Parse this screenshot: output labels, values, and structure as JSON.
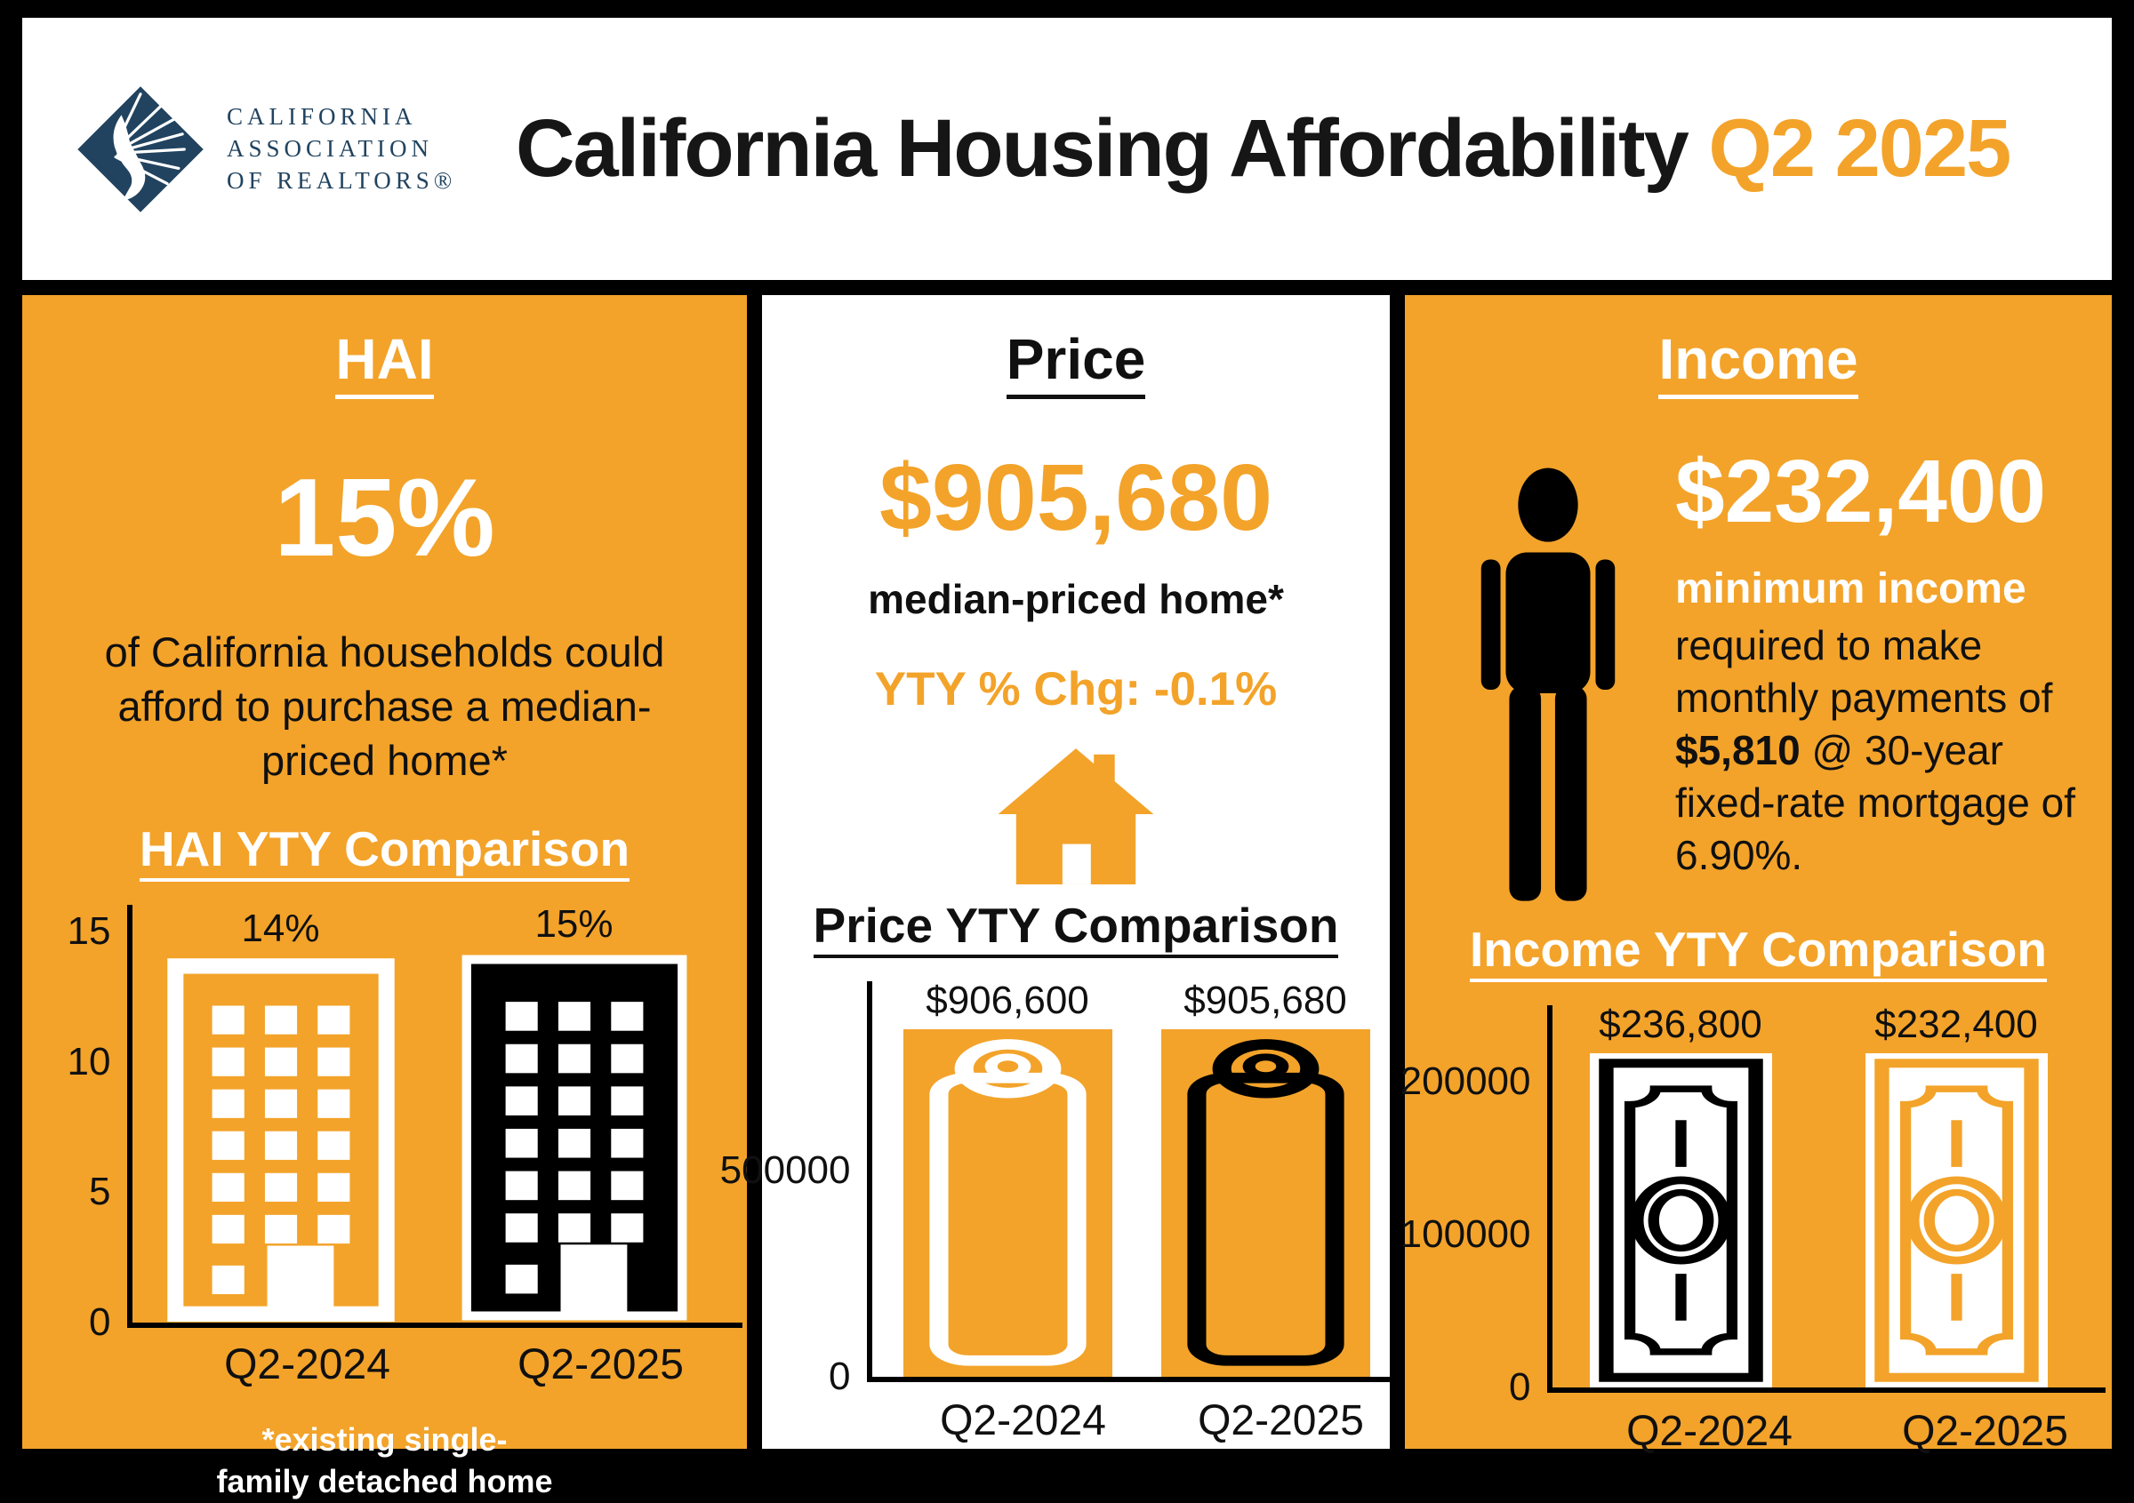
{
  "colors": {
    "accent": "#f3a32a",
    "navy": "#21435f",
    "black": "#000000",
    "white": "#ffffff"
  },
  "header": {
    "logo_line1": "CALIFORNIA",
    "logo_line2": "ASSOCIATION",
    "logo_line3": "OF REALTORS®",
    "title": "California Housing Affordability",
    "title_accent": "Q2 2025"
  },
  "panels": {
    "hai": {
      "title": "HAI",
      "headline": "15%",
      "description": "of California households could afford to purchase a median-priced home*",
      "chart_title": "HAI YTY Comparison",
      "footnote_line1": "*existing single-",
      "footnote_line2": "family detached home"
    },
    "price": {
      "title": "Price",
      "headline": "$905,680",
      "subhead": "median-priced home*",
      "yty_change": "YTY % Chg: -0.1%",
      "chart_title": "Price YTY Comparison"
    },
    "income": {
      "title": "Income",
      "headline": "$232,400",
      "min_label": "minimum income",
      "desc_part1": "required to make monthly payments of ",
      "desc_bold": "$5,810",
      "desc_part2": " @ 30-year fixed-rate mortgage of 6.90%.",
      "chart_title": "Income YTY Comparison"
    }
  },
  "chart_data": [
    {
      "id": "hai",
      "type": "bar",
      "title": "HAI YTY Comparison",
      "categories": [
        "Q2-2024",
        "Q2-2025"
      ],
      "values": [
        14,
        15
      ],
      "value_labels": [
        "14%",
        "15%"
      ],
      "yticks": [
        0,
        5,
        10,
        15
      ],
      "ytick_labels": [
        "0",
        "5",
        "10",
        "15"
      ],
      "ylim": [
        0,
        16
      ],
      "ylabel": "",
      "xlabel": "",
      "grid": false,
      "legend": "none",
      "icon": "building",
      "bar_styles": [
        "orange-with-white-outline",
        "black-with-white-windows"
      ]
    },
    {
      "id": "price",
      "type": "bar",
      "title": "Price YTY Comparison",
      "categories": [
        "Q2-2024",
        "Q2-2025"
      ],
      "values": [
        906600,
        905680
      ],
      "value_labels": [
        "$906,600",
        "$905,680"
      ],
      "yticks": [
        0,
        500000
      ],
      "ytick_labels": [
        "0",
        "500000"
      ],
      "ylim": [
        0,
        960000
      ],
      "ylabel": "",
      "xlabel": "",
      "grid": false,
      "legend": "none",
      "icon": "price-tag",
      "bar_styles": [
        "orange-bar-white-tag",
        "orange-bar-black-tag"
      ]
    },
    {
      "id": "income",
      "type": "bar",
      "title": "Income YTY Comparison",
      "categories": [
        "Q2-2024",
        "Q2-2025"
      ],
      "values": [
        236800,
        232400
      ],
      "value_labels": [
        "$236,800",
        "$232,400"
      ],
      "yticks": [
        0,
        100000,
        200000
      ],
      "ytick_labels": [
        "0",
        "100000",
        "200000"
      ],
      "ylim": [
        0,
        250000
      ],
      "ylabel": "",
      "xlabel": "",
      "grid": false,
      "legend": "none",
      "icon": "banknote",
      "bar_styles": [
        "white-bar-black-bill",
        "white-bar-orange-bill"
      ]
    }
  ]
}
